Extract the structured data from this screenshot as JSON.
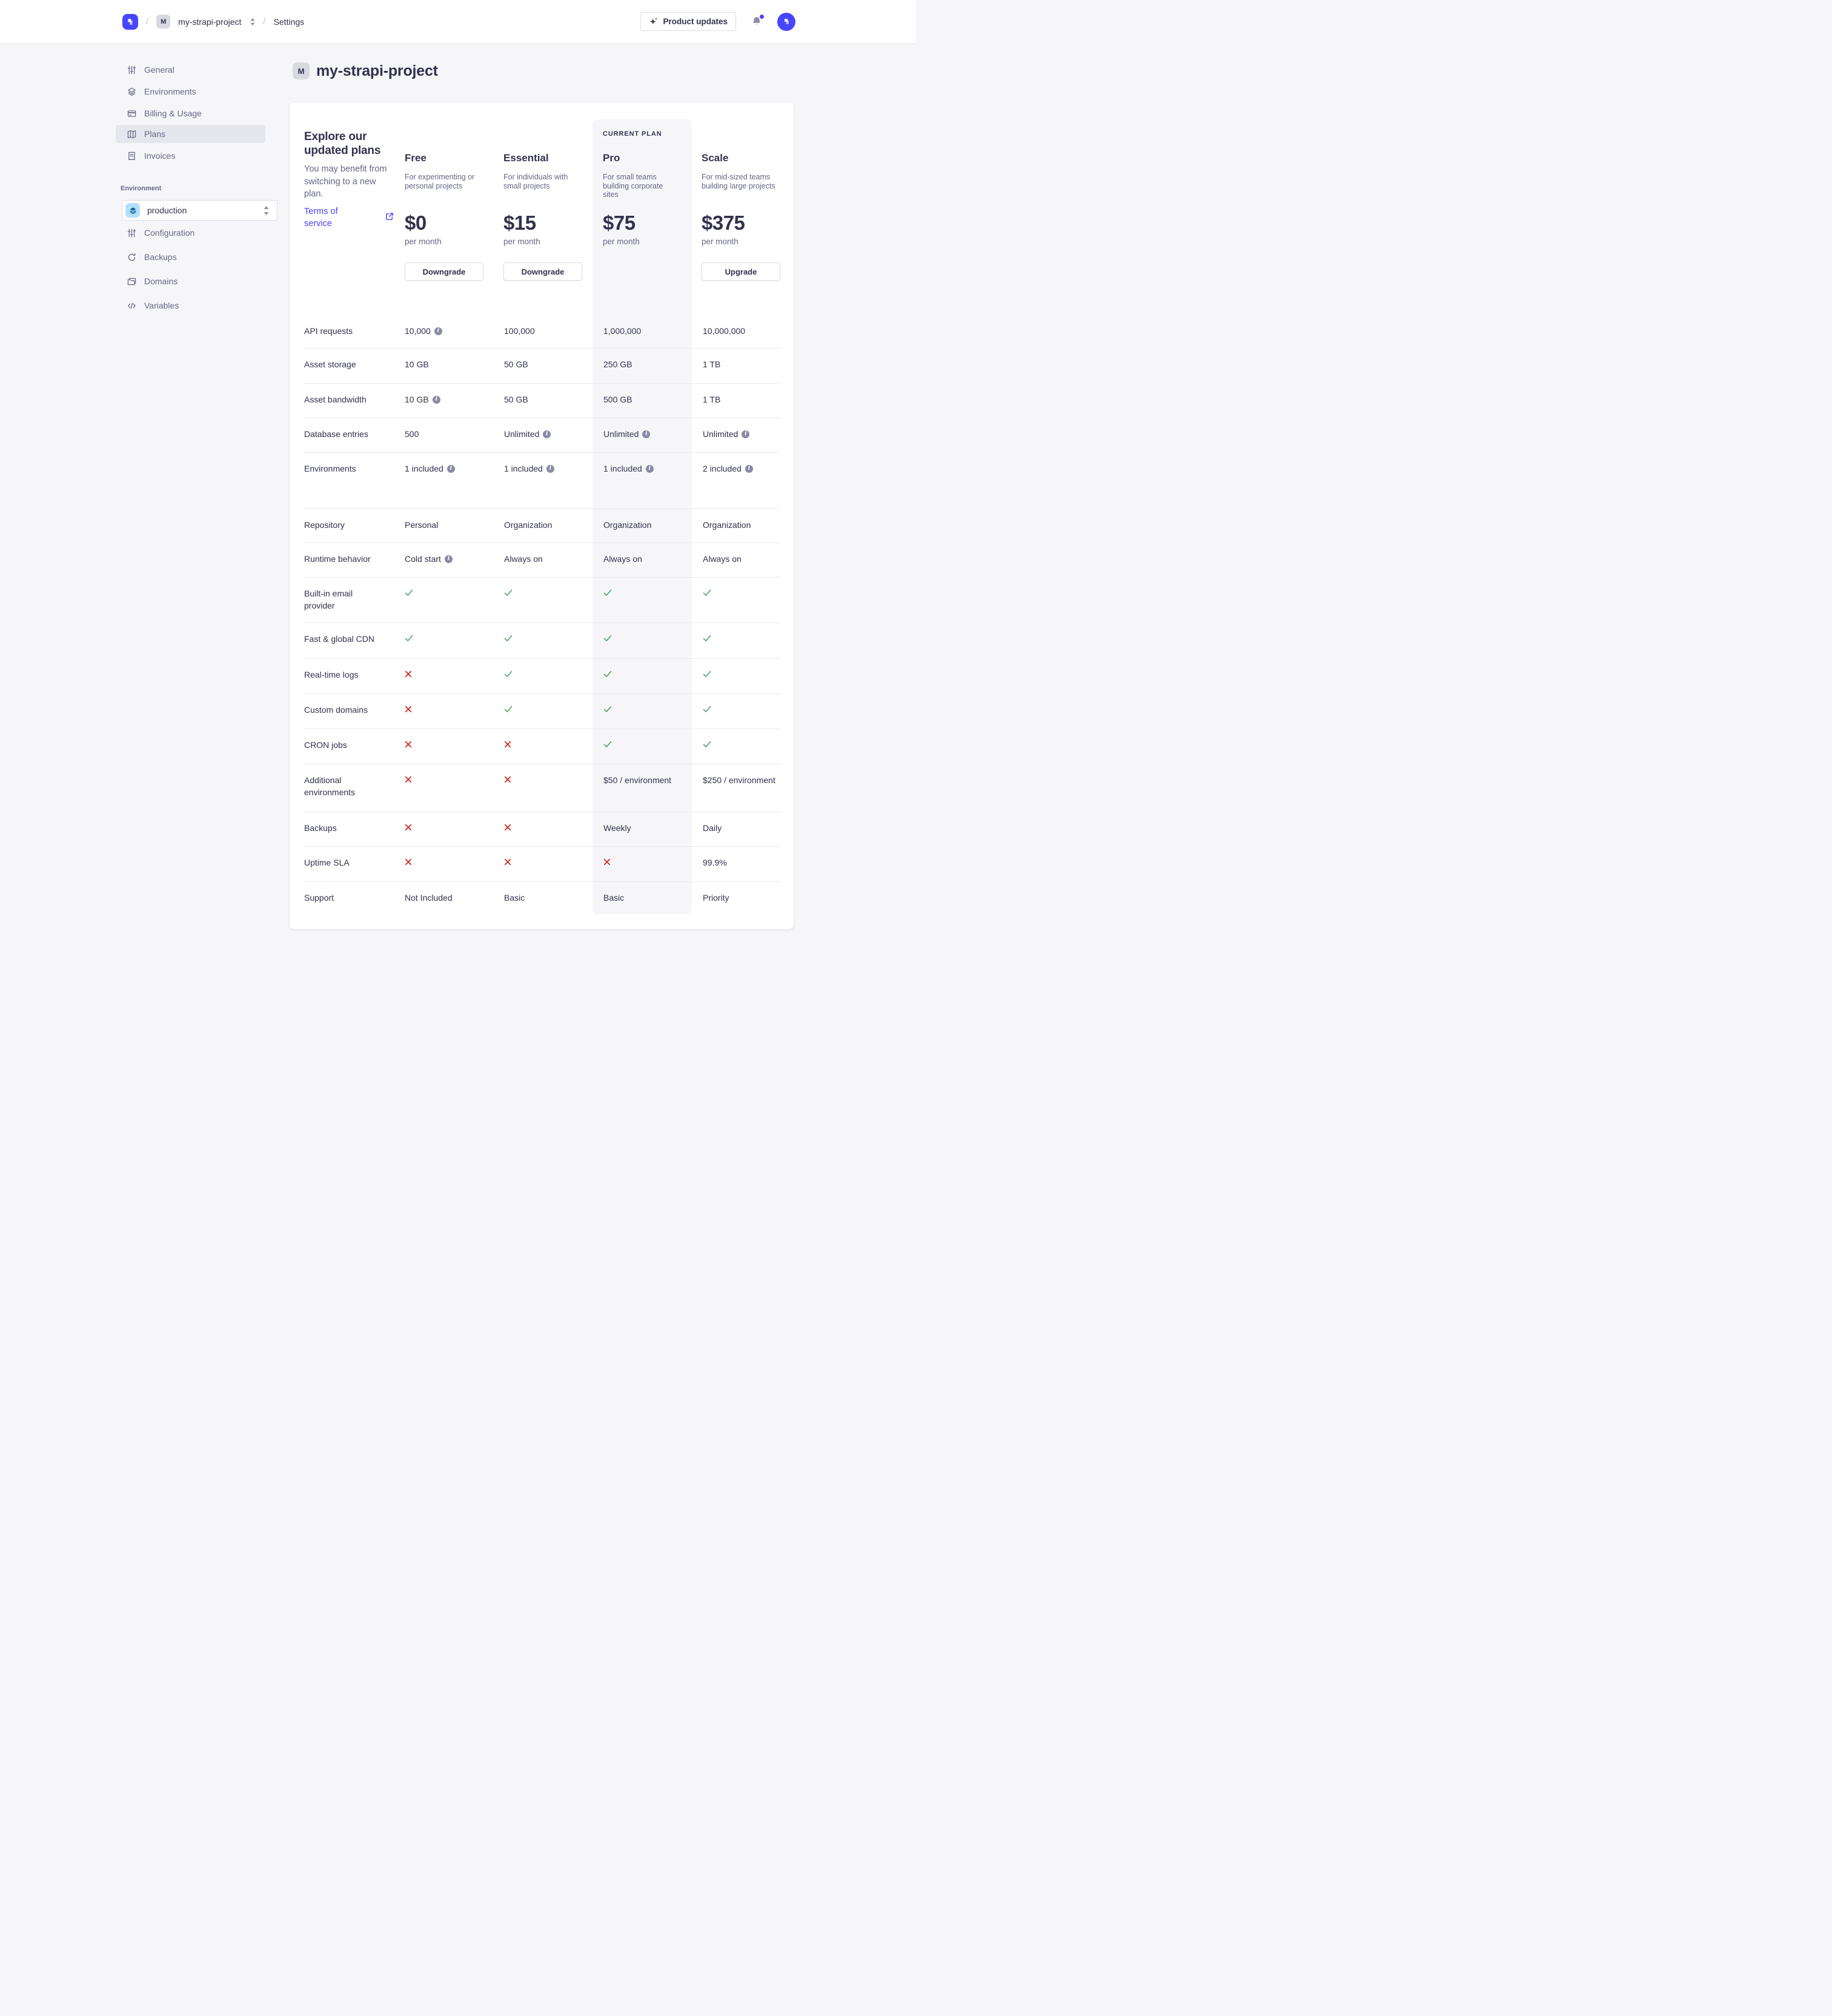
{
  "header": {
    "breadcrumb": {
      "project_initial": "M",
      "project": "my-strapi-project",
      "section": "Settings"
    },
    "product_updates_label": "Product updates"
  },
  "sidebar": {
    "items": [
      {
        "label": "General",
        "icon": "sliders-icon",
        "active": false
      },
      {
        "label": "Environments",
        "icon": "layers-icon",
        "active": false
      },
      {
        "label": "Billing & Usage",
        "icon": "credit-card-icon",
        "active": false
      },
      {
        "label": "Plans",
        "icon": "map-icon",
        "active": true
      },
      {
        "label": "Invoices",
        "icon": "invoice-icon",
        "active": false
      }
    ],
    "environment_label": "Environment",
    "environment_select": {
      "value": "production",
      "icon": "layers-icon"
    },
    "environment_items": [
      {
        "label": "Configuration",
        "icon": "sliders-icon"
      },
      {
        "label": "Backups",
        "icon": "refresh-icon"
      },
      {
        "label": "Domains",
        "icon": "folder-icon"
      },
      {
        "label": "Variables",
        "icon": "code-icon"
      }
    ]
  },
  "page": {
    "title_initial": "M",
    "title": "my-strapi-project"
  },
  "plans_card": {
    "intro": {
      "heading": "Explore our updated plans",
      "description": "You may benefit from switching to a new plan.",
      "link_label": "Terms of service"
    },
    "current_plan_label": "CURRENT PLAN",
    "plans": [
      {
        "name": "Free",
        "description": "For experimenting or personal projects",
        "price": "$0",
        "period": "per month",
        "action": "Downgrade",
        "current": false
      },
      {
        "name": "Essential",
        "description": "For individuals with small projects",
        "price": "$15",
        "period": "per month",
        "action": "Downgrade",
        "current": false
      },
      {
        "name": "Pro",
        "description": "For small teams building corporate sites",
        "price": "$75",
        "period": "per month",
        "action": null,
        "current": true
      },
      {
        "name": "Scale",
        "description": "For mid-sized teams building large projects",
        "price": "$375",
        "period": "per month",
        "action": "Upgrade",
        "current": false
      }
    ],
    "rows": [
      {
        "label": "API requests",
        "cells": [
          {
            "v": "10,000",
            "info": true
          },
          {
            "v": "100,000"
          },
          {
            "v": "1,000,000"
          },
          {
            "v": "10,000,000"
          }
        ]
      },
      {
        "label": "Asset storage",
        "cells": [
          {
            "v": "10 GB"
          },
          {
            "v": "50 GB"
          },
          {
            "v": "250 GB"
          },
          {
            "v": "1 TB"
          }
        ]
      },
      {
        "label": "Asset bandwidth",
        "cells": [
          {
            "v": "10 GB",
            "info": true
          },
          {
            "v": "50 GB"
          },
          {
            "v": "500 GB"
          },
          {
            "v": "1 TB"
          }
        ]
      },
      {
        "label": "Database entries",
        "cells": [
          {
            "v": "500"
          },
          {
            "v": "Unlimited",
            "info": true
          },
          {
            "v": "Unlimited",
            "info": true
          },
          {
            "v": "Unlimited",
            "info": true
          }
        ]
      },
      {
        "label": "Environments",
        "cells": [
          {
            "v": "1 included",
            "info": true
          },
          {
            "v": "1 included",
            "info": true
          },
          {
            "v": "1 included",
            "info": true
          },
          {
            "v": "2 included",
            "info": true
          }
        ]
      },
      {
        "label": "Repository",
        "cells": [
          {
            "v": "Personal"
          },
          {
            "v": "Organization"
          },
          {
            "v": "Organization"
          },
          {
            "v": "Organization"
          }
        ]
      },
      {
        "label": "Runtime behavior",
        "cells": [
          {
            "v": "Cold start",
            "info": true
          },
          {
            "v": "Always on"
          },
          {
            "v": "Always on"
          },
          {
            "v": "Always on"
          }
        ]
      },
      {
        "label": "Built-in email provider",
        "cells": [
          {
            "check": true
          },
          {
            "check": true
          },
          {
            "check": true
          },
          {
            "check": true
          }
        ]
      },
      {
        "label": "Fast & global CDN",
        "cells": [
          {
            "check": true
          },
          {
            "check": true
          },
          {
            "check": true
          },
          {
            "check": true
          }
        ]
      },
      {
        "label": "Real-time logs",
        "cells": [
          {
            "cross": true
          },
          {
            "check": true
          },
          {
            "check": true
          },
          {
            "check": true
          }
        ]
      },
      {
        "label": "Custom domains",
        "cells": [
          {
            "cross": true
          },
          {
            "check": true
          },
          {
            "check": true
          },
          {
            "check": true
          }
        ]
      },
      {
        "label": "CRON jobs",
        "cells": [
          {
            "cross": true
          },
          {
            "cross": true
          },
          {
            "check": true
          },
          {
            "check": true
          }
        ]
      },
      {
        "label": "Additional environments",
        "cells": [
          {
            "cross": true
          },
          {
            "cross": true
          },
          {
            "v": "$50 / environment"
          },
          {
            "v": "$250 / environment"
          }
        ]
      },
      {
        "label": "Backups",
        "cells": [
          {
            "cross": true
          },
          {
            "cross": true
          },
          {
            "v": "Weekly"
          },
          {
            "v": "Daily"
          }
        ]
      },
      {
        "label": "Uptime SLA",
        "cells": [
          {
            "cross": true
          },
          {
            "cross": true
          },
          {
            "cross": true
          },
          {
            "v": "99.9%"
          }
        ]
      },
      {
        "label": "Support",
        "cells": [
          {
            "v": "Not Included"
          },
          {
            "v": "Basic"
          },
          {
            "v": "Basic"
          },
          {
            "v": "Priority"
          }
        ]
      }
    ]
  },
  "colors": {
    "accent": "#4945ff",
    "success_check": "#52a464",
    "danger_cross": "#d02b20",
    "current_plan_panel": "#f6f6f9"
  }
}
